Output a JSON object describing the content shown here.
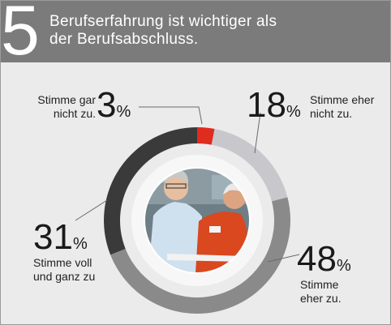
{
  "header": {
    "number": "5",
    "title_line1": "Berufserfahrung ist wichtiger als",
    "title_line2": "der Berufsabschluss."
  },
  "colors": {
    "header_bg": "#7b7b7b",
    "background": "#ebebeb",
    "gar_nicht": "#e02b1f",
    "eher_nicht": "#c8c8cc",
    "eher": "#8a8a8a",
    "voll": "#3a3a3a"
  },
  "chart_data": {
    "type": "pie",
    "variant": "donut",
    "title": "Berufserfahrung ist wichtiger als der Berufsabschluss.",
    "unit": "%",
    "slices": [
      {
        "label_line1": "Stimme gar",
        "label_line2": "nicht zu.",
        "value": 3,
        "color": "#e02b1f"
      },
      {
        "label_line1": "Stimme eher",
        "label_line2": "nicht zu.",
        "value": 18,
        "color": "#c8c8cc"
      },
      {
        "label_line1": "Stimme",
        "label_line2": "eher zu.",
        "value": 48,
        "color": "#8a8a8a"
      },
      {
        "label_line1": "Stimme voll",
        "label_line2": "und ganz zu",
        "value": 31,
        "color": "#3a3a3a"
      }
    ],
    "center_image": "photo of two smiling workers"
  }
}
